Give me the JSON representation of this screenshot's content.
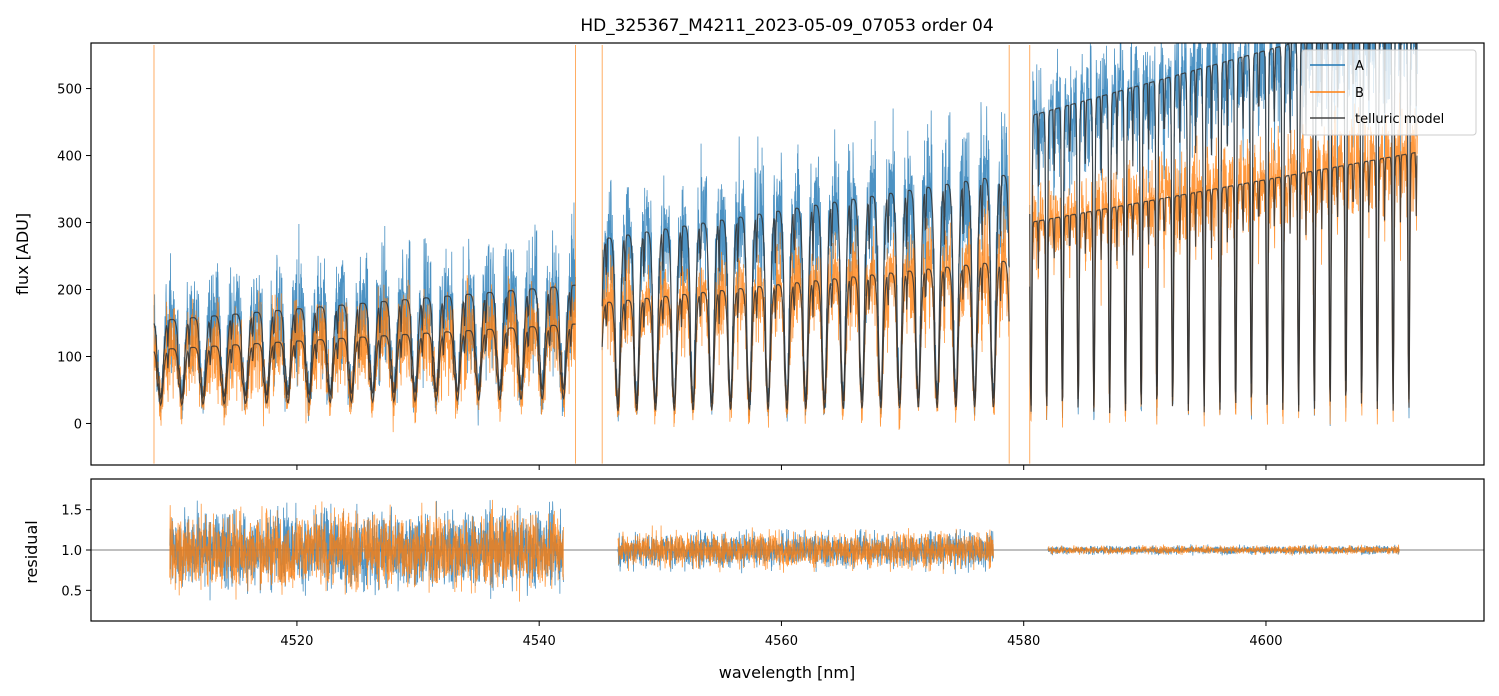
{
  "chart_data": [
    {
      "panel": "top",
      "type": "line",
      "title": "HD_325367_M4211_2023-05-09_07053  order 04",
      "xlabel": "",
      "ylabel": "flux [ADU]",
      "xlim": [
        4503,
        4618
      ],
      "ylim": [
        -62,
        568
      ],
      "x_ticks": [
        4520,
        4540,
        4560,
        4580,
        4600
      ],
      "y_ticks": [
        0,
        100,
        200,
        300,
        400,
        500
      ],
      "y_tick_labels": [
        "0",
        "100",
        "200",
        "300",
        "400",
        "500"
      ],
      "legend": {
        "location": "top-right",
        "entries": [
          "A",
          "B",
          "telluric model"
        ]
      },
      "segments": [
        {
          "x_start": 4508.2,
          "x_end": 4543.0,
          "A_continuum": 150,
          "B_continuum": 110
        },
        {
          "x_start": 4545.2,
          "x_end": 4578.8,
          "A_continuum": 270,
          "B_continuum": 180
        },
        {
          "x_start": 4580.5,
          "x_end": 4612.5,
          "A_continuum": 450,
          "B_continuum": 300
        }
      ],
      "series": [
        {
          "name": "A",
          "color": "#1f77b4",
          "description": "observed spectrum, fiber A"
        },
        {
          "name": "B",
          "color": "#ff7f0e",
          "description": "observed spectrum, fiber B"
        },
        {
          "name": "telluric model",
          "color": "#333333",
          "description": "telluric absorption model"
        }
      ]
    },
    {
      "panel": "bottom",
      "type": "line",
      "title": "",
      "xlabel": "wavelength [nm]",
      "ylabel": "residual",
      "xlim": [
        4503,
        4618
      ],
      "ylim": [
        0.12,
        1.88
      ],
      "x_ticks": [
        4520,
        4540,
        4560,
        4580,
        4600
      ],
      "x_tick_labels": [
        "4520",
        "4540",
        "4560",
        "4580",
        "4600"
      ],
      "y_ticks": [
        0.5,
        1.0,
        1.5
      ],
      "y_tick_labels": [
        "0.5",
        "1.0",
        "1.5"
      ],
      "reference_line": 1.0,
      "segments": [
        {
          "x_start": 4509.5,
          "x_end": 4542.0,
          "spread": 0.55
        },
        {
          "x_start": 4546.5,
          "x_end": 4577.5,
          "spread": 0.25
        },
        {
          "x_start": 4582.0,
          "x_end": 4611.0,
          "spread": 0.06
        }
      ]
    }
  ]
}
